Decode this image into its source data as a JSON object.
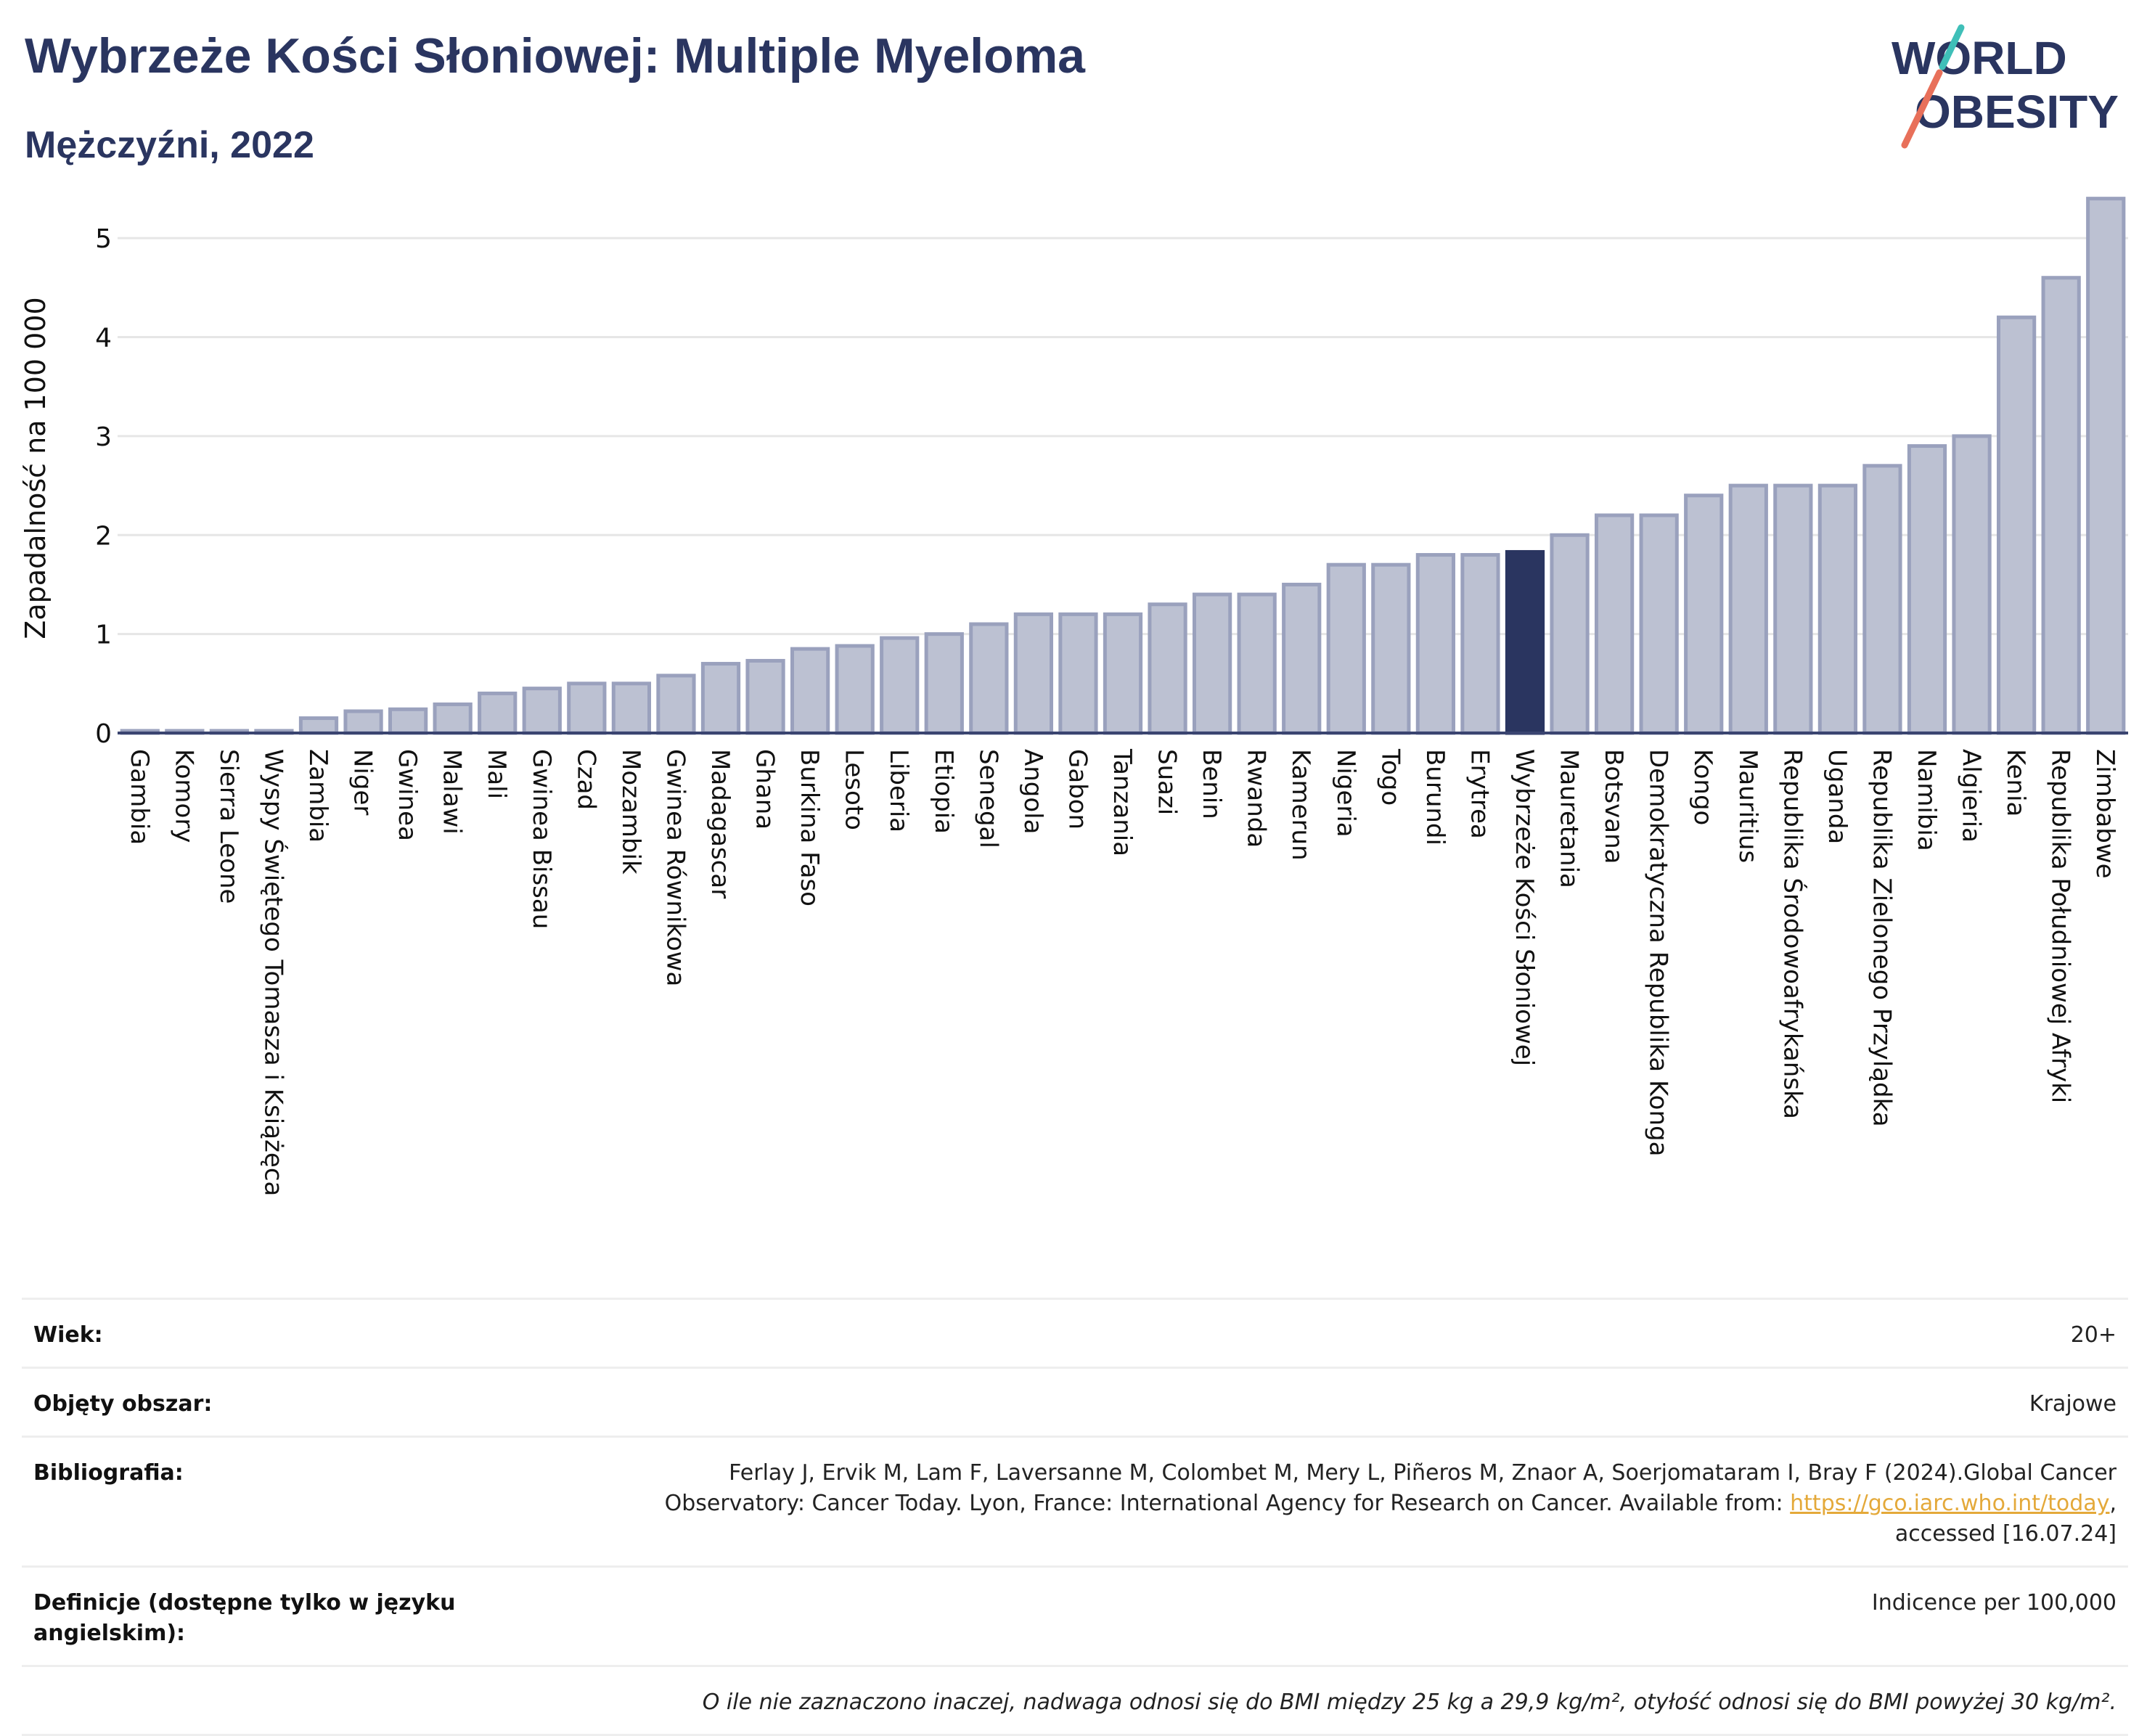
{
  "header": {
    "title": "Wybrzeże Kości Słoniowej: Multiple Myeloma",
    "subtitle": "Mężczyźni, 2022"
  },
  "logo": {
    "line1": "WORLD",
    "line2": "OBESITY",
    "accent_colors": [
      "#e8705a",
      "#3fbfb8"
    ]
  },
  "colors": {
    "bar": "#bcc1d2",
    "bar_stroke": "#9aa1bd",
    "highlight": "#2a3560",
    "grid": "#e6e6e6",
    "text": "#2a3560"
  },
  "chart_data": {
    "type": "bar",
    "ylabel": "Zapadalność na 100 000",
    "ylim": [
      0,
      5.5
    ],
    "yticks": [
      0,
      1,
      2,
      3,
      4,
      5
    ],
    "grid": true,
    "highlight_category": "Wybrzeże Kości Słoniowej",
    "categories": [
      "Gambia",
      "Komory",
      "Sierra Leone",
      "Wyspy Świętego Tomasza i Książęca",
      "Zambia",
      "Niger",
      "Gwinea",
      "Malawi",
      "Mali",
      "Gwinea Bissau",
      "Czad",
      "Mozambik",
      "Gwinea Równikowa",
      "Madagascar",
      "Ghana",
      "Burkina Faso",
      "Lesoto",
      "Liberia",
      "Etiopia",
      "Senegal",
      "Angola",
      "Gabon",
      "Tanzania",
      "Suazi",
      "Benin",
      "Rwanda",
      "Kamerun",
      "Nigeria",
      "Togo",
      "Burundi",
      "Erytrea",
      "Wybrzeże Kości Słoniowej",
      "Mauretania",
      "Botsvana",
      "Demokratyczna Republika Konga",
      "Kongo",
      "Mauritius",
      "Republika Środowoafrykańska",
      "Uganda",
      "Republika Zielonego Przylądka",
      "Namibia",
      "Algieria",
      "Kenia",
      "Republika Południowej Afryki",
      "Zimbabwe"
    ],
    "values": [
      0.02,
      0.02,
      0.02,
      0.02,
      0.15,
      0.22,
      0.24,
      0.29,
      0.4,
      0.45,
      0.5,
      0.5,
      0.58,
      0.7,
      0.73,
      0.85,
      0.88,
      0.96,
      1.0,
      1.1,
      1.2,
      1.2,
      1.2,
      1.3,
      1.4,
      1.4,
      1.5,
      1.7,
      1.7,
      1.8,
      1.8,
      1.83,
      2.0,
      2.2,
      2.2,
      2.4,
      2.5,
      2.5,
      2.5,
      2.7,
      2.9,
      3.0,
      4.2,
      4.6,
      5.4
    ]
  },
  "info": {
    "age_label": "Wiek:",
    "age_value": "20+",
    "coverage_label": "Objęty obszar:",
    "coverage_value": "Krajowe",
    "bibliography_label": "Bibliografia:",
    "bibliography_line1": "Ferlay J, Ervik M, Lam F, Laversanne M, Colombet M, Mery L, Piñeros M, Znaor A, Soerjomataram I, Bray F (2024).Global Cancer",
    "bibliography_line2": "Observatory: Cancer Today. Lyon, France: International Agency for Research on Cancer. Available from:",
    "bibliography_link": "https://gco.iarc.who.int/today",
    "bibliography_line3": "accessed [16.07.24]",
    "definitions_label": "Definicje (dostępne tylko w języku angielskim):",
    "definitions_value": "Indicence per 100,000",
    "note": "O ile nie zaznaczono inaczej, nadwaga odnosi się do BMI między 25 kg a 29,9 kg/m², otyłość odnosi się do BMI powyżej 30 kg/m²."
  }
}
